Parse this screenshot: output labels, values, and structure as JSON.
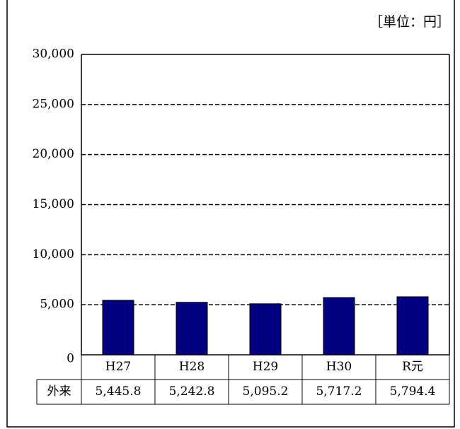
{
  "chart_data": {
    "type": "bar",
    "unit_label": "［単位：円］",
    "categories": [
      "H27",
      "H28",
      "H29",
      "H30",
      "R元"
    ],
    "series": [
      {
        "name": "外来",
        "color": "#000080",
        "values": [
          5445.8,
          5242.8,
          5095.2,
          5717.2,
          5794.4
        ],
        "value_labels": [
          "5,445.8",
          "5,242.8",
          "5,095.2",
          "5,717.2",
          "5,794.4"
        ]
      }
    ],
    "ylim": [
      0,
      30000
    ],
    "yticks": [
      0,
      {
        "value": 5000,
        "label": "5,000"
      },
      {
        "value": 10000,
        "label": "10,000"
      },
      {
        "value": 15000,
        "label": "15,000"
      },
      {
        "value": 20000,
        "label": "20,000"
      },
      {
        "value": 25000,
        "label": "25,000"
      },
      {
        "value": 30000,
        "label": "30,000"
      }
    ],
    "grid": true
  }
}
